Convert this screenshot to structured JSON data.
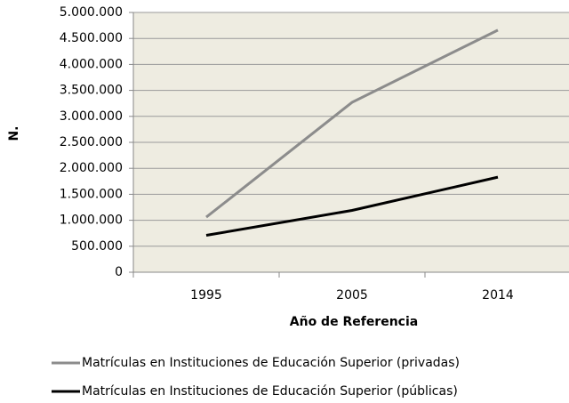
{
  "chart_data": {
    "type": "line",
    "categories": [
      "1995",
      "2005",
      "2014"
    ],
    "x_label": "Año de Referencia",
    "y_label": "N.",
    "series": [
      {
        "name": "Matrículas en Instituciones de Educación Superior (privadas)",
        "color": "#8c8c8c",
        "values": [
          1060000,
          3270000,
          4660000
        ]
      },
      {
        "name": "Matrículas en Instituciones de Educación Superior (públicas)",
        "color": "#000000",
        "values": [
          710000,
          1190000,
          1830000
        ]
      }
    ],
    "ylim": [
      0,
      5000000
    ],
    "yticks": [
      0,
      {
        "value": 500000,
        "label": "500.000"
      },
      {
        "value": 1000000,
        "label": "1.000.000"
      },
      {
        "value": 1500000,
        "label": "1.500.000"
      },
      {
        "value": 2000000,
        "label": "2.000.000"
      },
      {
        "value": 2500000,
        "label": "2.500.000"
      },
      {
        "value": 3000000,
        "label": "3.000.000"
      },
      {
        "value": 3500000,
        "label": "3.500.000"
      },
      {
        "value": 4000000,
        "label": "4.000.000"
      },
      {
        "value": 4500000,
        "label": "4.500.000"
      },
      {
        "value": 5000000,
        "label": "5.000.000"
      }
    ],
    "grid": true,
    "legend": "bottom"
  }
}
